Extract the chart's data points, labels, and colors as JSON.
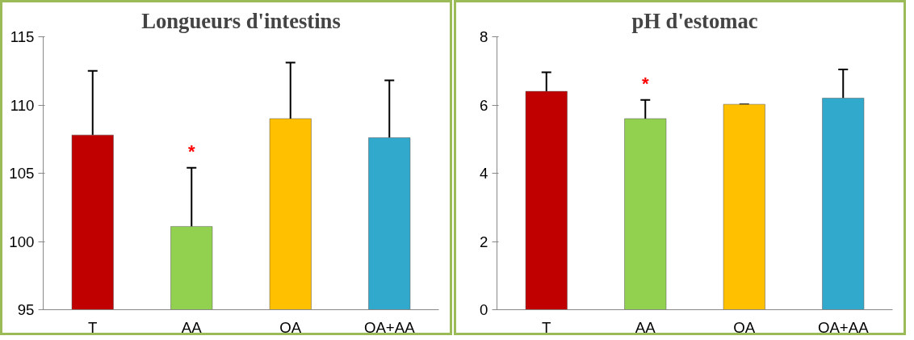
{
  "chart_data": [
    {
      "type": "bar",
      "title": "Longueurs d'intestins",
      "categories": [
        "T",
        "AA",
        "OA",
        "OA+AA"
      ],
      "values": [
        107.8,
        101.1,
        109.0,
        107.6
      ],
      "colors": [
        "#c00000",
        "#92d050",
        "#ffc000",
        "#31a9cc"
      ],
      "errors": [
        [
          107.8,
          112.5
        ],
        [
          101.1,
          105.4
        ],
        [
          109.0,
          113.1
        ],
        [
          107.6,
          111.8
        ]
      ],
      "ylim": [
        95,
        115
      ],
      "yticks": [
        95,
        100,
        105,
        110,
        115
      ],
      "grid": false,
      "annotations": [
        "*"
      ]
    },
    {
      "type": "bar",
      "title": "pH d'estomac",
      "categories": [
        "T",
        "AA",
        "OA",
        "OA+AA"
      ],
      "values": [
        6.4,
        5.6,
        6.02,
        6.2
      ],
      "colors": [
        "#c00000",
        "#92d050",
        "#ffc000",
        "#31a9cc"
      ],
      "errors": [
        [
          6.4,
          6.96
        ],
        [
          5.6,
          6.15
        ],
        [
          6.02,
          6.02
        ],
        [
          6.2,
          7.04
        ]
      ],
      "ylim": [
        0,
        8
      ],
      "yticks": [
        0,
        2,
        4,
        6,
        8
      ],
      "grid": false,
      "annotations": [
        "*"
      ]
    }
  ]
}
